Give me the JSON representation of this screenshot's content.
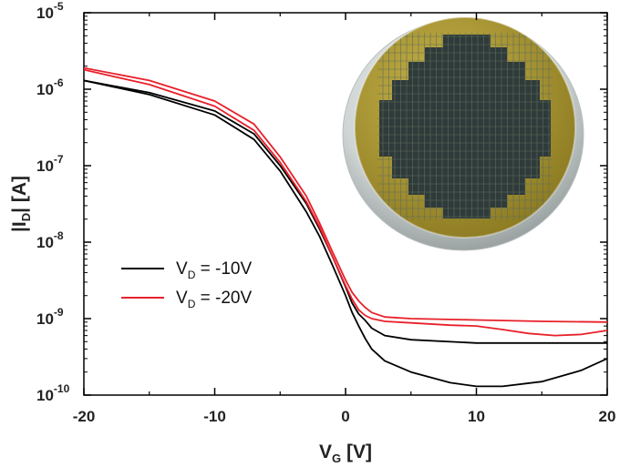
{
  "chart_data": {
    "type": "line",
    "xlabel": {
      "main": "V",
      "sub": "G",
      "unit": " [V]"
    },
    "ylabel": {
      "pre": "|I",
      "sub": "D",
      "post": "| [A]"
    },
    "xlim": [
      -20,
      20
    ],
    "ylim": [
      1e-10,
      1e-05
    ],
    "yscale": "log",
    "xticks": [
      {
        "value": -20,
        "label": "-20"
      },
      {
        "value": -10,
        "label": "-10"
      },
      {
        "value": 0,
        "label": "0"
      },
      {
        "value": 10,
        "label": "10"
      },
      {
        "value": 20,
        "label": "20"
      }
    ],
    "yticks": [
      {
        "value": 1e-10,
        "base": "10",
        "exp": "-10"
      },
      {
        "value": 1e-09,
        "base": "10",
        "exp": "-9"
      },
      {
        "value": 1e-08,
        "base": "10",
        "exp": "-8"
      },
      {
        "value": 1e-07,
        "base": "10",
        "exp": "-7"
      },
      {
        "value": 1e-06,
        "base": "10",
        "exp": "-6"
      },
      {
        "value": 1e-05,
        "base": "10",
        "exp": "-5"
      }
    ],
    "legend_position": "center-left",
    "series": [
      {
        "name_main": "V",
        "name_sub": "D",
        "name_rest": " = -10V",
        "color": "#000000",
        "sweeps": [
          [
            [
              -20,
              1.3e-06
            ],
            [
              -15,
              9e-07
            ],
            [
              -10,
              5.2e-07
            ],
            [
              -7,
              2.6e-07
            ],
            [
              -5,
              1e-07
            ],
            [
              -3,
              3.2e-08
            ],
            [
              -2,
              1.5e-08
            ],
            [
              -1,
              6.5e-09
            ],
            [
              0,
              2.6e-09
            ],
            [
              0.5,
              1.6e-09
            ],
            [
              1,
              1.15e-09
            ],
            [
              1.5,
              9.5e-10
            ],
            [
              2,
              7.5e-10
            ],
            [
              3,
              6e-10
            ],
            [
              5,
              5.3e-10
            ],
            [
              10,
              4.8e-10
            ],
            [
              15,
              4.8e-10
            ],
            [
              20,
              4.8e-10
            ]
          ],
          [
            [
              -20,
              1.3e-06
            ],
            [
              -15,
              8.5e-07
            ],
            [
              -10,
              4.6e-07
            ],
            [
              -7,
              2.2e-07
            ],
            [
              -5,
              8.5e-08
            ],
            [
              -3,
              2.5e-08
            ],
            [
              -2,
              1.2e-08
            ],
            [
              -1,
              5e-09
            ],
            [
              0,
              2e-09
            ],
            [
              0.5,
              1.2e-09
            ],
            [
              1,
              8e-10
            ],
            [
              1.5,
              5.5e-10
            ],
            [
              2,
              4e-10
            ],
            [
              3,
              2.8e-10
            ],
            [
              5,
              2e-10
            ],
            [
              8,
              1.45e-10
            ],
            [
              10,
              1.3e-10
            ],
            [
              12,
              1.3e-10
            ],
            [
              15,
              1.5e-10
            ],
            [
              18,
              2.1e-10
            ],
            [
              20,
              3e-10
            ]
          ]
        ]
      },
      {
        "name_main": "V",
        "name_sub": "D",
        "name_rest": " = -20V",
        "color": "#e8202a",
        "sweeps": [
          [
            [
              -20,
              1.9e-06
            ],
            [
              -15,
              1.3e-06
            ],
            [
              -10,
              7e-07
            ],
            [
              -7,
              3.5e-07
            ],
            [
              -5,
              1.3e-07
            ],
            [
              -3,
              4e-08
            ],
            [
              -2,
              1.8e-08
            ],
            [
              -1,
              7.5e-09
            ],
            [
              0,
              3.2e-09
            ],
            [
              0.5,
              2.2e-09
            ],
            [
              1,
              1.7e-09
            ],
            [
              1.5,
              1.4e-09
            ],
            [
              2,
              1.2e-09
            ],
            [
              3,
              1.05e-09
            ],
            [
              5,
              1e-09
            ],
            [
              10,
              9.6e-10
            ],
            [
              15,
              9.2e-10
            ],
            [
              20,
              9e-10
            ]
          ],
          [
            [
              -20,
              1.8e-06
            ],
            [
              -15,
              1.15e-06
            ],
            [
              -10,
              6e-07
            ],
            [
              -7,
              2.9e-07
            ],
            [
              -5,
              1.1e-07
            ],
            [
              -3,
              3.4e-08
            ],
            [
              -2,
              1.6e-08
            ],
            [
              -1,
              6.5e-09
            ],
            [
              0,
              2.7e-09
            ],
            [
              0.5,
              1.8e-09
            ],
            [
              1,
              1.3e-09
            ],
            [
              1.5,
              1.1e-09
            ],
            [
              2,
              1e-09
            ],
            [
              3,
              9.2e-10
            ],
            [
              5,
              8.8e-10
            ],
            [
              8,
              8.2e-10
            ],
            [
              10,
              8e-10
            ],
            [
              12,
              7.2e-10
            ],
            [
              14,
              6.4e-10
            ],
            [
              16,
              6e-10
            ],
            [
              18,
              6.2e-10
            ],
            [
              20,
              7e-10
            ]
          ]
        ]
      }
    ]
  }
}
